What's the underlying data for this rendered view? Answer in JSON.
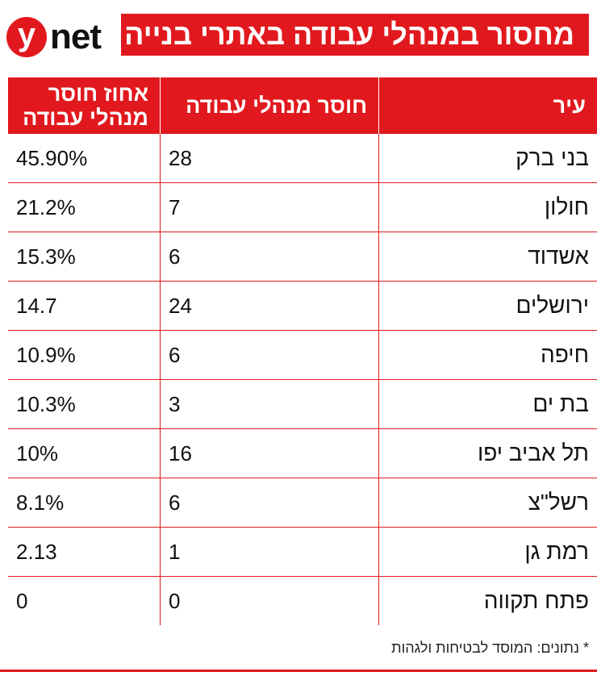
{
  "brand": {
    "logo_letter": "y",
    "logo_word": "net",
    "accent_color": "#e1191e"
  },
  "title": "מחסור במנהלי עבודה באתרי בנייה",
  "chart_data": {
    "type": "table",
    "columns": [
      "עיר",
      "חוסר מנהלי עבודה",
      "אחוז חוסר מנהלי עבודה"
    ],
    "rows": [
      {
        "city": "בני ברק",
        "shortage": "28",
        "percent": "45.90%"
      },
      {
        "city": "חולון",
        "shortage": "7",
        "percent": "21.2%"
      },
      {
        "city": "אשדוד",
        "shortage": "6",
        "percent": "15.3%"
      },
      {
        "city": "ירושלים",
        "shortage": "24",
        "percent": "14.7"
      },
      {
        "city": "חיפה",
        "shortage": "6",
        "percent": "10.9%"
      },
      {
        "city": "בת ים",
        "shortage": "3",
        "percent": "10.3%"
      },
      {
        "city": "תל אביב יפו",
        "shortage": "16",
        "percent": "10%"
      },
      {
        "city": "רשל\"צ",
        "shortage": "6",
        "percent": "8.1%"
      },
      {
        "city": "רמת גן",
        "shortage": "1",
        "percent": "2.13"
      },
      {
        "city": "פתח תקווה",
        "shortage": "0",
        "percent": "0"
      }
    ]
  },
  "source": "* נתונים: המוסד לבטיחות ולגהות"
}
